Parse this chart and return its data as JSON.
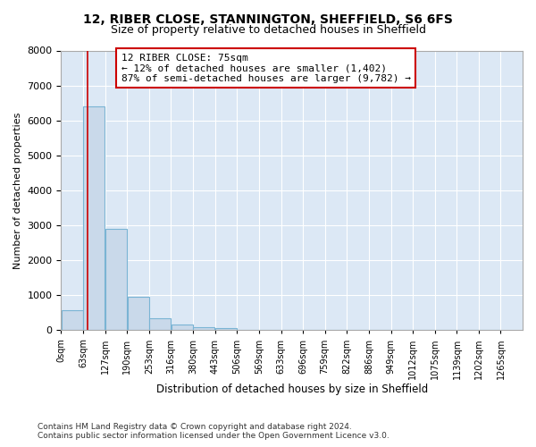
{
  "title1": "12, RIBER CLOSE, STANNINGTON, SHEFFIELD, S6 6FS",
  "title2": "Size of property relative to detached houses in Sheffield",
  "xlabel": "Distribution of detached houses by size in Sheffield",
  "ylabel": "Number of detached properties",
  "bin_labels": [
    "0sqm",
    "63sqm",
    "127sqm",
    "190sqm",
    "253sqm",
    "316sqm",
    "380sqm",
    "443sqm",
    "506sqm",
    "569sqm",
    "633sqm",
    "696sqm",
    "759sqm",
    "822sqm",
    "886sqm",
    "949sqm",
    "1012sqm",
    "1075sqm",
    "1139sqm",
    "1202sqm",
    "1265sqm"
  ],
  "bin_edges": [
    0,
    63,
    127,
    190,
    253,
    316,
    380,
    443,
    506,
    569,
    633,
    696,
    759,
    822,
    886,
    949,
    1012,
    1075,
    1139,
    1202,
    1265
  ],
  "bar_heights": [
    580,
    6400,
    2900,
    950,
    350,
    160,
    100,
    60,
    10,
    5,
    3,
    2,
    1,
    1,
    0,
    0,
    0,
    0,
    0,
    0
  ],
  "bar_color": "#c9d9ea",
  "bar_edgecolor": "#7ab4d4",
  "property_size": 75,
  "red_line_color": "#cc0000",
  "annotation_text": "12 RIBER CLOSE: 75sqm\n← 12% of detached houses are smaller (1,402)\n87% of semi-detached houses are larger (9,782) →",
  "annotation_box_color": "#ffffff",
  "annotation_box_edgecolor": "#cc0000",
  "footer_text": "Contains HM Land Registry data © Crown copyright and database right 2024.\nContains public sector information licensed under the Open Government Licence v3.0.",
  "ylim": [
    0,
    8000
  ],
  "background_color": "#dce8f5",
  "grid_color": "#ffffff",
  "fig_facecolor": "#ffffff"
}
